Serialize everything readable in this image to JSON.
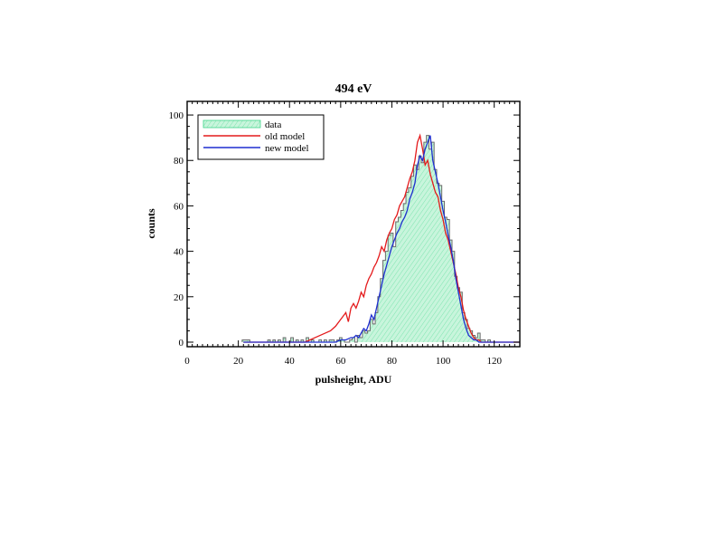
{
  "chart_data": {
    "type": "line",
    "title": "494 eV",
    "xlabel": "pulsheight, ADU",
    "ylabel": "counts",
    "xlim": [
      0,
      130
    ],
    "ylim": [
      -2,
      106
    ],
    "x_ticks": [
      0,
      20,
      40,
      60,
      80,
      100,
      120
    ],
    "y_ticks": [
      0,
      20,
      40,
      60,
      80,
      100
    ],
    "grid": false,
    "legend_position": "top-left",
    "legend": [
      {
        "label": "data",
        "style": "hatched-fill",
        "color": "#3fd58a",
        "fill": "#c8f5dc"
      },
      {
        "label": "old model",
        "style": "line",
        "color": "#e41a1c"
      },
      {
        "label": "new model",
        "style": "line",
        "color": "#1f2fd0"
      }
    ],
    "series": [
      {
        "name": "data",
        "kind": "histogram",
        "color": "#3fd58a",
        "x": [
          22,
          23,
          24,
          25,
          26,
          27,
          28,
          29,
          30,
          31,
          32,
          33,
          34,
          35,
          36,
          37,
          38,
          39,
          40,
          41,
          42,
          43,
          44,
          45,
          46,
          47,
          48,
          49,
          50,
          51,
          52,
          53,
          54,
          55,
          56,
          57,
          58,
          59,
          60,
          61,
          62,
          63,
          64,
          65,
          66,
          67,
          68,
          69,
          70,
          71,
          72,
          73,
          74,
          75,
          76,
          77,
          78,
          79,
          80,
          81,
          82,
          83,
          84,
          85,
          86,
          87,
          88,
          89,
          90,
          91,
          92,
          93,
          94,
          95,
          96,
          97,
          98,
          99,
          100,
          101,
          102,
          103,
          104,
          105,
          106,
          107,
          108,
          109,
          110,
          111,
          112,
          113,
          114,
          115,
          116,
          117,
          118,
          119,
          120,
          121,
          122,
          123,
          124,
          125,
          126,
          127,
          128,
          129
        ],
        "y": [
          1,
          1,
          1,
          0,
          0,
          0,
          0,
          0,
          0,
          0,
          1,
          0,
          1,
          0,
          1,
          0,
          2,
          0,
          0,
          2,
          0,
          1,
          0,
          1,
          0,
          2,
          0,
          1,
          0,
          0,
          1,
          0,
          1,
          0,
          1,
          1,
          0,
          1,
          2,
          1,
          0,
          0,
          1,
          2,
          0,
          3,
          2,
          5,
          4,
          5,
          10,
          8,
          13,
          20,
          28,
          36,
          40,
          47,
          48,
          42,
          53,
          55,
          58,
          61,
          66,
          68,
          73,
          78,
          76,
          82,
          79,
          88,
          91,
          85,
          88,
          76,
          70,
          69,
          62,
          55,
          54,
          45,
          40,
          29,
          24,
          22,
          13,
          10,
          6,
          5,
          3,
          2,
          4,
          1,
          1,
          0,
          1,
          0,
          0,
          0,
          0,
          0,
          0,
          0,
          0,
          0,
          0,
          0
        ]
      },
      {
        "name": "old model",
        "color": "#e41a1c",
        "x": [
          22,
          25,
          28,
          30,
          32,
          34,
          36,
          38,
          40,
          42,
          44,
          46,
          48,
          50,
          52,
          54,
          56,
          58,
          60,
          62,
          63,
          64,
          65,
          66,
          67,
          68,
          69,
          70,
          71,
          72,
          73,
          74,
          75,
          76,
          77,
          78,
          79,
          80,
          81,
          82,
          83,
          84,
          85,
          86,
          87,
          88,
          89,
          90,
          91,
          92,
          93,
          94,
          95,
          96,
          97,
          98,
          99,
          100,
          101,
          102,
          103,
          104,
          105,
          106,
          107,
          108,
          109,
          110,
          111,
          112,
          113,
          114,
          115,
          116,
          118,
          120,
          122,
          124,
          126,
          128,
          130
        ],
        "y": [
          0,
          0,
          0,
          0,
          0,
          0,
          0,
          0,
          0,
          0,
          0,
          0,
          1,
          2,
          3,
          4,
          5,
          7,
          10,
          13,
          9,
          15,
          17,
          15,
          18,
          22,
          20,
          25,
          28,
          30,
          33,
          35,
          38,
          42,
          40,
          45,
          48,
          50,
          54,
          56,
          60,
          62,
          64,
          68,
          72,
          75,
          80,
          88,
          91,
          85,
          78,
          80,
          74,
          70,
          66,
          64,
          58,
          54,
          48,
          45,
          40,
          35,
          30,
          24,
          20,
          14,
          10,
          7,
          4,
          2,
          1,
          1,
          0,
          0,
          0,
          0,
          0,
          0,
          0,
          0,
          0
        ]
      },
      {
        "name": "new model",
        "color": "#1f2fd0",
        "x": [
          22,
          25,
          28,
          30,
          32,
          34,
          36,
          38,
          40,
          42,
          44,
          46,
          48,
          50,
          52,
          54,
          56,
          58,
          60,
          62,
          64,
          65,
          66,
          67,
          68,
          69,
          70,
          71,
          72,
          73,
          74,
          75,
          76,
          77,
          78,
          79,
          80,
          81,
          82,
          83,
          84,
          85,
          86,
          87,
          88,
          89,
          90,
          91,
          92,
          93,
          94,
          95,
          96,
          97,
          98,
          99,
          100,
          101,
          102,
          103,
          104,
          105,
          106,
          107,
          108,
          109,
          110,
          111,
          112,
          113,
          114,
          115,
          116,
          118,
          120,
          122,
          124,
          126,
          128,
          130
        ],
        "y": [
          0,
          0,
          0,
          0,
          0,
          0,
          0,
          0,
          0,
          0,
          0,
          0,
          0,
          0,
          0,
          0,
          0,
          0,
          1,
          1,
          2,
          2,
          3,
          2,
          4,
          6,
          5,
          8,
          12,
          10,
          15,
          20,
          25,
          30,
          34,
          38,
          42,
          45,
          48,
          50,
          53,
          55,
          58,
          63,
          66,
          70,
          78,
          82,
          80,
          85,
          88,
          91,
          80,
          75,
          70,
          64,
          58,
          53,
          47,
          42,
          36,
          28,
          22,
          16,
          10,
          6,
          3,
          2,
          1,
          1,
          0,
          0,
          0,
          0,
          0,
          0,
          0,
          0,
          0,
          0
        ]
      }
    ]
  }
}
